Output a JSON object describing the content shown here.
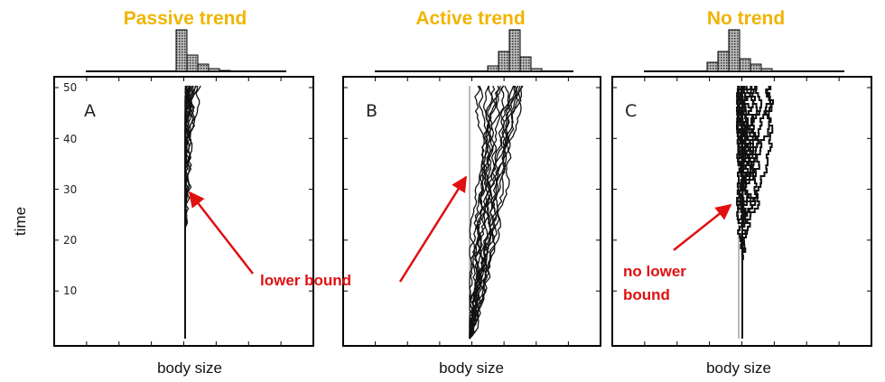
{
  "figure": {
    "panels": [
      {
        "title": "Passive trend",
        "letter": "A",
        "x_label": "body size"
      },
      {
        "title": "Active trend",
        "letter": "B",
        "x_label": "body size"
      },
      {
        "title": "No trend",
        "letter": "C",
        "x_label": "body size"
      }
    ],
    "y_label": "time",
    "y_ticks": [
      "50",
      "40",
      "30",
      "20",
      "10"
    ],
    "annotations": [
      {
        "text": "lower bound"
      },
      {
        "lines": [
          "no lower",
          "bound"
        ]
      }
    ]
  }
}
